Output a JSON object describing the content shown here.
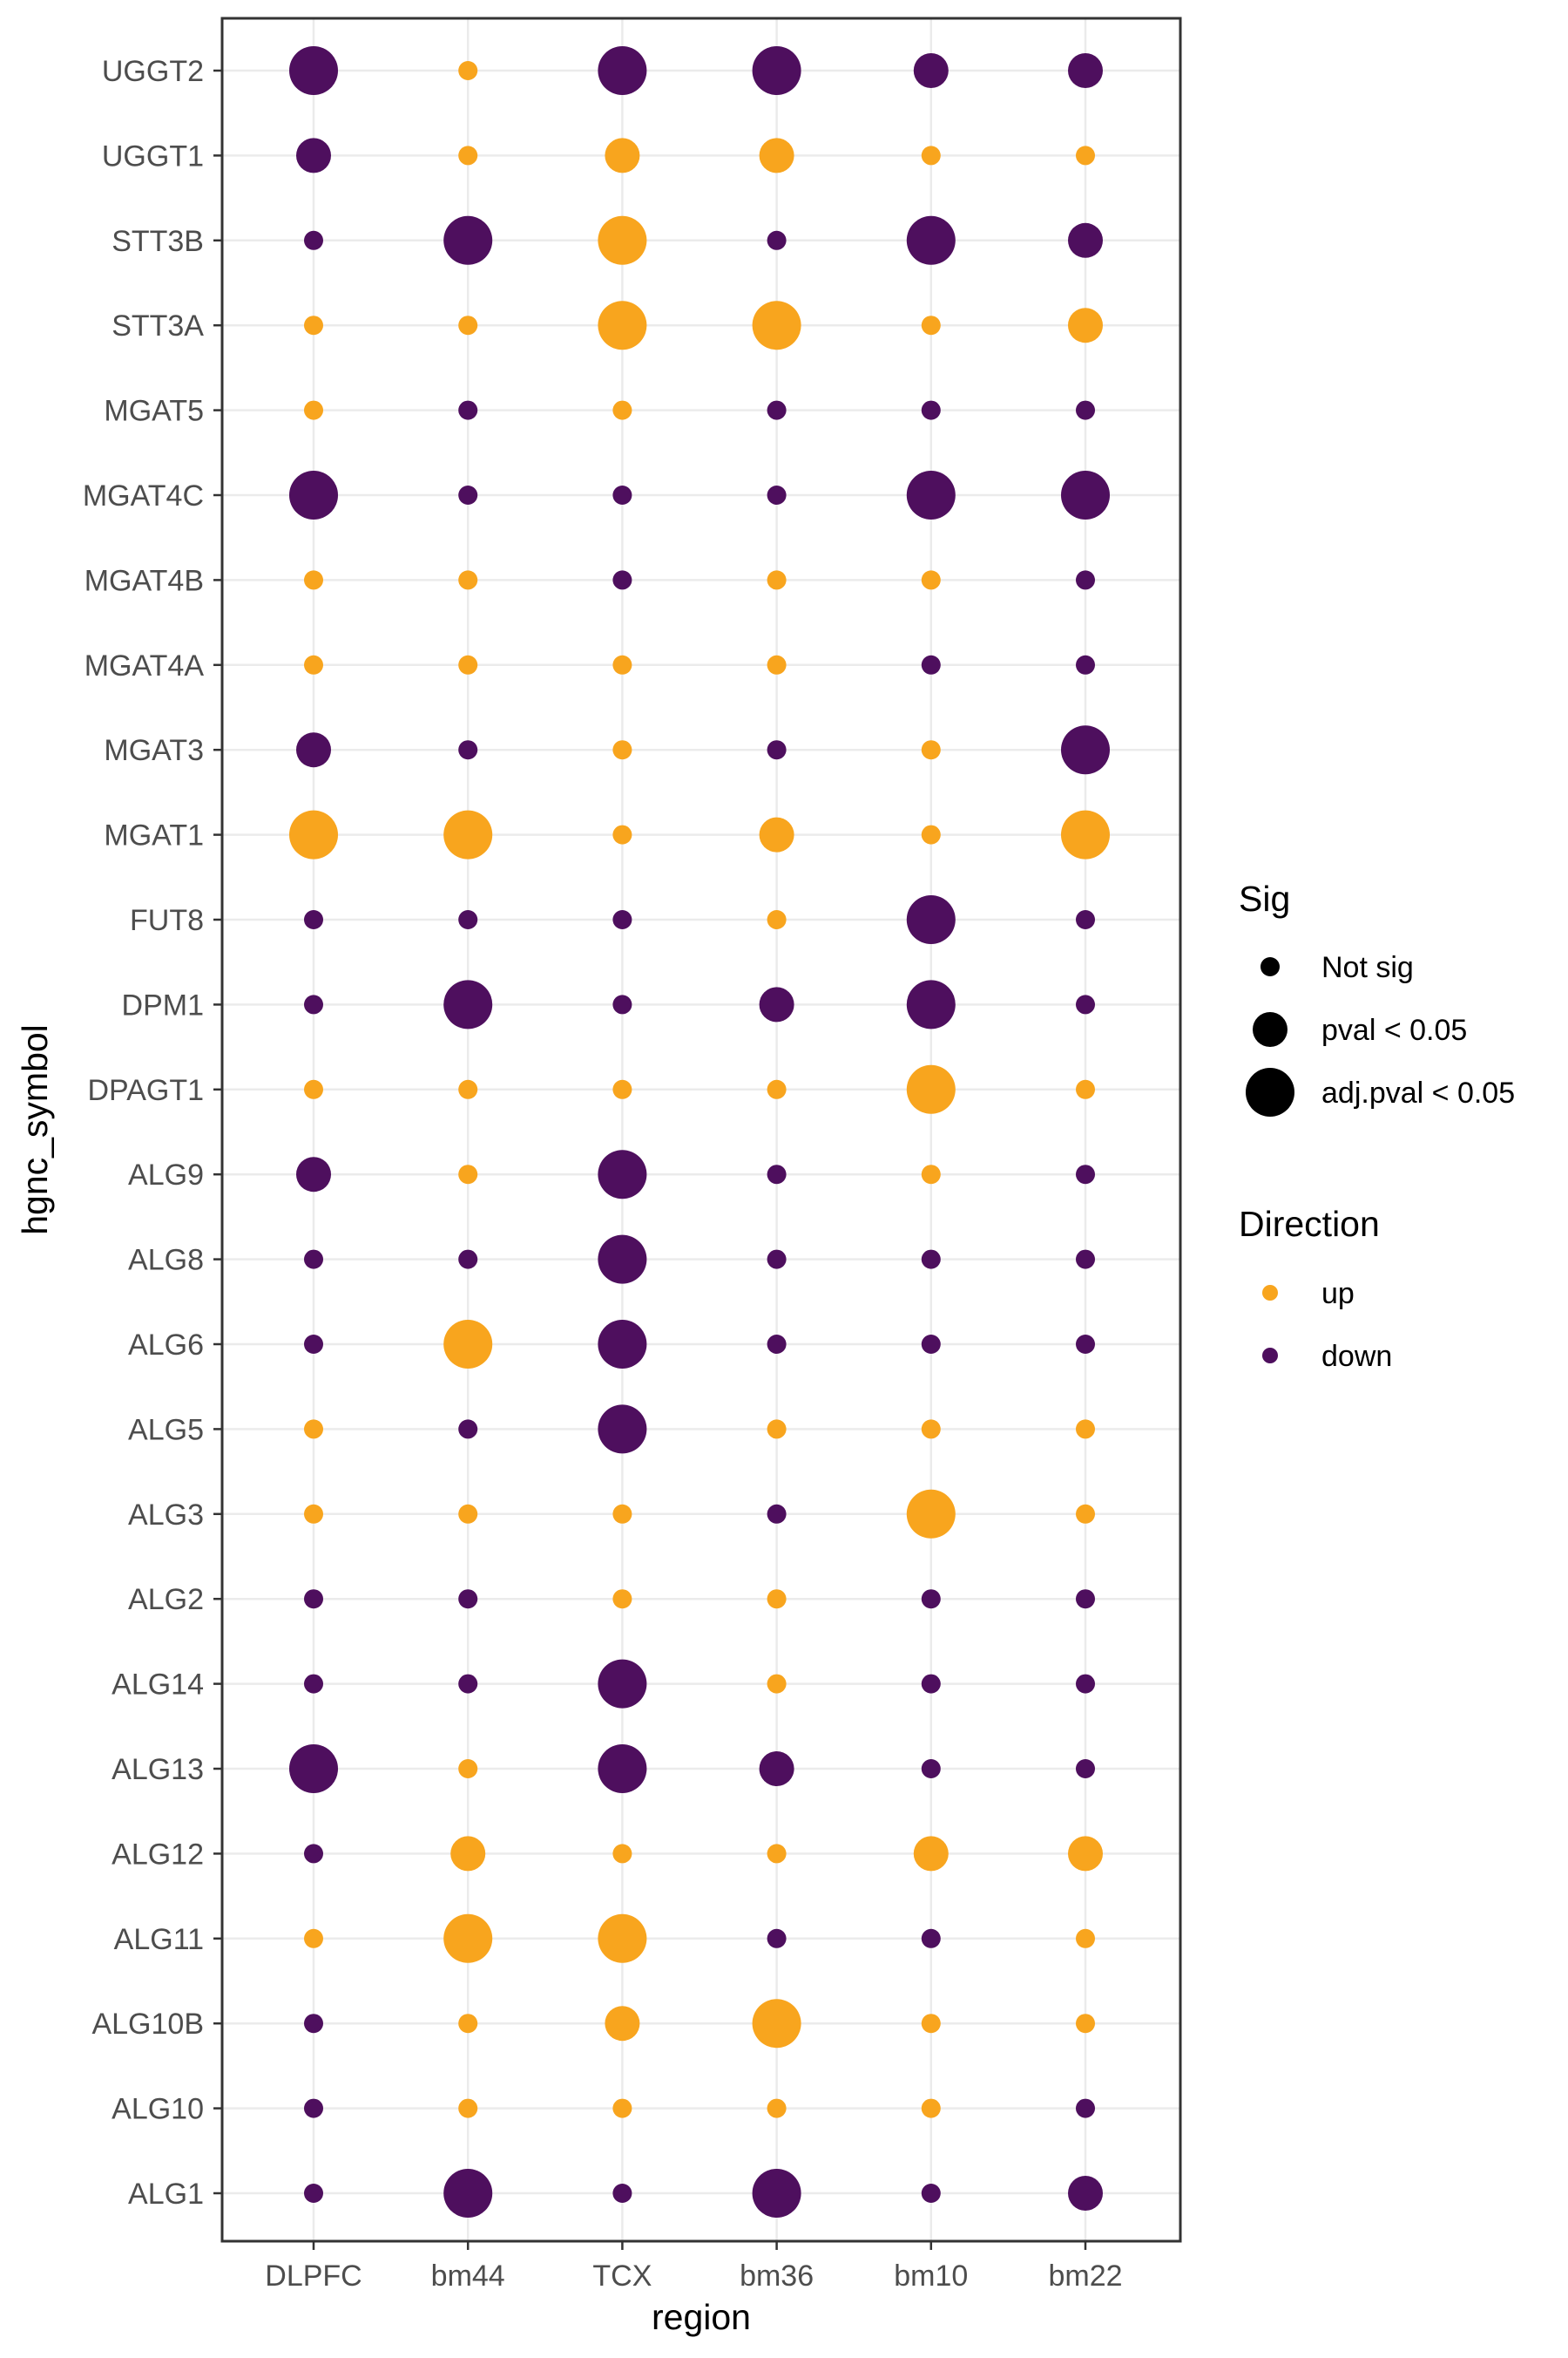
{
  "chart_data": {
    "type": "scatter",
    "xlabel": "region",
    "ylabel": "hgnc_symbol",
    "x_categories": [
      "DLPFC",
      "bm44",
      "TCX",
      "bm36",
      "bm10",
      "bm22"
    ],
    "y_categories": [
      "UGGT2",
      "UGGT1",
      "STT3B",
      "STT3A",
      "MGAT5",
      "MGAT4C",
      "MGAT4B",
      "MGAT4A",
      "MGAT3",
      "MGAT1",
      "FUT8",
      "DPM1",
      "DPAGT1",
      "ALG9",
      "ALG8",
      "ALG6",
      "ALG5",
      "ALG3",
      "ALG2",
      "ALG14",
      "ALG13",
      "ALG12",
      "ALG11",
      "ALG10B",
      "ALG10",
      "ALG1"
    ],
    "grid": true,
    "legend_placement": "right",
    "size_legend": {
      "title": "Sig",
      "levels": [
        "Not sig",
        "pval < 0.05",
        "adj.pval < 0.05"
      ]
    },
    "color_legend": {
      "title": "Direction",
      "levels": [
        "up",
        "down"
      ],
      "colors": {
        "up": "#F8A51E",
        "down": "#4E0F5E"
      }
    },
    "points": [
      [
        "UGGT2",
        "DLPFC",
        "down",
        "adj.pval < 0.05"
      ],
      [
        "UGGT2",
        "bm44",
        "up",
        "Not sig"
      ],
      [
        "UGGT2",
        "TCX",
        "down",
        "adj.pval < 0.05"
      ],
      [
        "UGGT2",
        "bm36",
        "down",
        "adj.pval < 0.05"
      ],
      [
        "UGGT2",
        "bm10",
        "down",
        "pval < 0.05"
      ],
      [
        "UGGT2",
        "bm22",
        "down",
        "pval < 0.05"
      ],
      [
        "UGGT1",
        "DLPFC",
        "down",
        "pval < 0.05"
      ],
      [
        "UGGT1",
        "bm44",
        "up",
        "Not sig"
      ],
      [
        "UGGT1",
        "TCX",
        "up",
        "pval < 0.05"
      ],
      [
        "UGGT1",
        "bm36",
        "up",
        "pval < 0.05"
      ],
      [
        "UGGT1",
        "bm10",
        "up",
        "Not sig"
      ],
      [
        "UGGT1",
        "bm22",
        "up",
        "Not sig"
      ],
      [
        "STT3B",
        "DLPFC",
        "down",
        "Not sig"
      ],
      [
        "STT3B",
        "bm44",
        "down",
        "adj.pval < 0.05"
      ],
      [
        "STT3B",
        "TCX",
        "up",
        "adj.pval < 0.05"
      ],
      [
        "STT3B",
        "bm36",
        "down",
        "Not sig"
      ],
      [
        "STT3B",
        "bm10",
        "down",
        "adj.pval < 0.05"
      ],
      [
        "STT3B",
        "bm22",
        "down",
        "pval < 0.05"
      ],
      [
        "STT3A",
        "DLPFC",
        "up",
        "Not sig"
      ],
      [
        "STT3A",
        "bm44",
        "up",
        "Not sig"
      ],
      [
        "STT3A",
        "TCX",
        "up",
        "adj.pval < 0.05"
      ],
      [
        "STT3A",
        "bm36",
        "up",
        "adj.pval < 0.05"
      ],
      [
        "STT3A",
        "bm10",
        "up",
        "Not sig"
      ],
      [
        "STT3A",
        "bm22",
        "up",
        "pval < 0.05"
      ],
      [
        "MGAT5",
        "DLPFC",
        "up",
        "Not sig"
      ],
      [
        "MGAT5",
        "bm44",
        "down",
        "Not sig"
      ],
      [
        "MGAT5",
        "TCX",
        "up",
        "Not sig"
      ],
      [
        "MGAT5",
        "bm36",
        "down",
        "Not sig"
      ],
      [
        "MGAT5",
        "bm10",
        "down",
        "Not sig"
      ],
      [
        "MGAT5",
        "bm22",
        "down",
        "Not sig"
      ],
      [
        "MGAT4C",
        "DLPFC",
        "down",
        "adj.pval < 0.05"
      ],
      [
        "MGAT4C",
        "bm44",
        "down",
        "Not sig"
      ],
      [
        "MGAT4C",
        "TCX",
        "down",
        "Not sig"
      ],
      [
        "MGAT4C",
        "bm36",
        "down",
        "Not sig"
      ],
      [
        "MGAT4C",
        "bm10",
        "down",
        "adj.pval < 0.05"
      ],
      [
        "MGAT4C",
        "bm22",
        "down",
        "adj.pval < 0.05"
      ],
      [
        "MGAT4B",
        "DLPFC",
        "up",
        "Not sig"
      ],
      [
        "MGAT4B",
        "bm44",
        "up",
        "Not sig"
      ],
      [
        "MGAT4B",
        "TCX",
        "down",
        "Not sig"
      ],
      [
        "MGAT4B",
        "bm36",
        "up",
        "Not sig"
      ],
      [
        "MGAT4B",
        "bm10",
        "up",
        "Not sig"
      ],
      [
        "MGAT4B",
        "bm22",
        "down",
        "Not sig"
      ],
      [
        "MGAT4A",
        "DLPFC",
        "up",
        "Not sig"
      ],
      [
        "MGAT4A",
        "bm44",
        "up",
        "Not sig"
      ],
      [
        "MGAT4A",
        "TCX",
        "up",
        "Not sig"
      ],
      [
        "MGAT4A",
        "bm36",
        "up",
        "Not sig"
      ],
      [
        "MGAT4A",
        "bm10",
        "down",
        "Not sig"
      ],
      [
        "MGAT4A",
        "bm22",
        "down",
        "Not sig"
      ],
      [
        "MGAT3",
        "DLPFC",
        "down",
        "pval < 0.05"
      ],
      [
        "MGAT3",
        "bm44",
        "down",
        "Not sig"
      ],
      [
        "MGAT3",
        "TCX",
        "up",
        "Not sig"
      ],
      [
        "MGAT3",
        "bm36",
        "down",
        "Not sig"
      ],
      [
        "MGAT3",
        "bm10",
        "up",
        "Not sig"
      ],
      [
        "MGAT3",
        "bm22",
        "down",
        "adj.pval < 0.05"
      ],
      [
        "MGAT1",
        "DLPFC",
        "up",
        "adj.pval < 0.05"
      ],
      [
        "MGAT1",
        "bm44",
        "up",
        "adj.pval < 0.05"
      ],
      [
        "MGAT1",
        "TCX",
        "up",
        "Not sig"
      ],
      [
        "MGAT1",
        "bm36",
        "up",
        "pval < 0.05"
      ],
      [
        "MGAT1",
        "bm10",
        "up",
        "Not sig"
      ],
      [
        "MGAT1",
        "bm22",
        "up",
        "adj.pval < 0.05"
      ],
      [
        "FUT8",
        "DLPFC",
        "down",
        "Not sig"
      ],
      [
        "FUT8",
        "bm44",
        "down",
        "Not sig"
      ],
      [
        "FUT8",
        "TCX",
        "down",
        "Not sig"
      ],
      [
        "FUT8",
        "bm36",
        "up",
        "Not sig"
      ],
      [
        "FUT8",
        "bm10",
        "down",
        "adj.pval < 0.05"
      ],
      [
        "FUT8",
        "bm22",
        "down",
        "Not sig"
      ],
      [
        "DPM1",
        "DLPFC",
        "down",
        "Not sig"
      ],
      [
        "DPM1",
        "bm44",
        "down",
        "adj.pval < 0.05"
      ],
      [
        "DPM1",
        "TCX",
        "down",
        "Not sig"
      ],
      [
        "DPM1",
        "bm36",
        "down",
        "pval < 0.05"
      ],
      [
        "DPM1",
        "bm10",
        "down",
        "adj.pval < 0.05"
      ],
      [
        "DPM1",
        "bm22",
        "down",
        "Not sig"
      ],
      [
        "DPAGT1",
        "DLPFC",
        "up",
        "Not sig"
      ],
      [
        "DPAGT1",
        "bm44",
        "up",
        "Not sig"
      ],
      [
        "DPAGT1",
        "TCX",
        "up",
        "Not sig"
      ],
      [
        "DPAGT1",
        "bm36",
        "up",
        "Not sig"
      ],
      [
        "DPAGT1",
        "bm10",
        "up",
        "adj.pval < 0.05"
      ],
      [
        "DPAGT1",
        "bm22",
        "up",
        "Not sig"
      ],
      [
        "ALG9",
        "DLPFC",
        "down",
        "pval < 0.05"
      ],
      [
        "ALG9",
        "bm44",
        "up",
        "Not sig"
      ],
      [
        "ALG9",
        "TCX",
        "down",
        "adj.pval < 0.05"
      ],
      [
        "ALG9",
        "bm36",
        "down",
        "Not sig"
      ],
      [
        "ALG9",
        "bm10",
        "up",
        "Not sig"
      ],
      [
        "ALG9",
        "bm22",
        "down",
        "Not sig"
      ],
      [
        "ALG8",
        "DLPFC",
        "down",
        "Not sig"
      ],
      [
        "ALG8",
        "bm44",
        "down",
        "Not sig"
      ],
      [
        "ALG8",
        "TCX",
        "down",
        "adj.pval < 0.05"
      ],
      [
        "ALG8",
        "bm36",
        "down",
        "Not sig"
      ],
      [
        "ALG8",
        "bm10",
        "down",
        "Not sig"
      ],
      [
        "ALG8",
        "bm22",
        "down",
        "Not sig"
      ],
      [
        "ALG6",
        "DLPFC",
        "down",
        "Not sig"
      ],
      [
        "ALG6",
        "bm44",
        "up",
        "adj.pval < 0.05"
      ],
      [
        "ALG6",
        "TCX",
        "down",
        "adj.pval < 0.05"
      ],
      [
        "ALG6",
        "bm36",
        "down",
        "Not sig"
      ],
      [
        "ALG6",
        "bm10",
        "down",
        "Not sig"
      ],
      [
        "ALG6",
        "bm22",
        "down",
        "Not sig"
      ],
      [
        "ALG5",
        "DLPFC",
        "up",
        "Not sig"
      ],
      [
        "ALG5",
        "bm44",
        "down",
        "Not sig"
      ],
      [
        "ALG5",
        "TCX",
        "down",
        "adj.pval < 0.05"
      ],
      [
        "ALG5",
        "bm36",
        "up",
        "Not sig"
      ],
      [
        "ALG5",
        "bm10",
        "up",
        "Not sig"
      ],
      [
        "ALG5",
        "bm22",
        "up",
        "Not sig"
      ],
      [
        "ALG3",
        "DLPFC",
        "up",
        "Not sig"
      ],
      [
        "ALG3",
        "bm44",
        "up",
        "Not sig"
      ],
      [
        "ALG3",
        "TCX",
        "up",
        "Not sig"
      ],
      [
        "ALG3",
        "bm36",
        "down",
        "Not sig"
      ],
      [
        "ALG3",
        "bm10",
        "up",
        "adj.pval < 0.05"
      ],
      [
        "ALG3",
        "bm22",
        "up",
        "Not sig"
      ],
      [
        "ALG2",
        "DLPFC",
        "down",
        "Not sig"
      ],
      [
        "ALG2",
        "bm44",
        "down",
        "Not sig"
      ],
      [
        "ALG2",
        "TCX",
        "up",
        "Not sig"
      ],
      [
        "ALG2",
        "bm36",
        "up",
        "Not sig"
      ],
      [
        "ALG2",
        "bm10",
        "down",
        "Not sig"
      ],
      [
        "ALG2",
        "bm22",
        "down",
        "Not sig"
      ],
      [
        "ALG14",
        "DLPFC",
        "down",
        "Not sig"
      ],
      [
        "ALG14",
        "bm44",
        "down",
        "Not sig"
      ],
      [
        "ALG14",
        "TCX",
        "down",
        "adj.pval < 0.05"
      ],
      [
        "ALG14",
        "bm36",
        "up",
        "Not sig"
      ],
      [
        "ALG14",
        "bm10",
        "down",
        "Not sig"
      ],
      [
        "ALG14",
        "bm22",
        "down",
        "Not sig"
      ],
      [
        "ALG13",
        "DLPFC",
        "down",
        "adj.pval < 0.05"
      ],
      [
        "ALG13",
        "bm44",
        "up",
        "Not sig"
      ],
      [
        "ALG13",
        "TCX",
        "down",
        "adj.pval < 0.05"
      ],
      [
        "ALG13",
        "bm36",
        "down",
        "pval < 0.05"
      ],
      [
        "ALG13",
        "bm10",
        "down",
        "Not sig"
      ],
      [
        "ALG13",
        "bm22",
        "down",
        "Not sig"
      ],
      [
        "ALG12",
        "DLPFC",
        "down",
        "Not sig"
      ],
      [
        "ALG12",
        "bm44",
        "up",
        "pval < 0.05"
      ],
      [
        "ALG12",
        "TCX",
        "up",
        "Not sig"
      ],
      [
        "ALG12",
        "bm36",
        "up",
        "Not sig"
      ],
      [
        "ALG12",
        "bm10",
        "up",
        "pval < 0.05"
      ],
      [
        "ALG12",
        "bm22",
        "up",
        "pval < 0.05"
      ],
      [
        "ALG11",
        "DLPFC",
        "up",
        "Not sig"
      ],
      [
        "ALG11",
        "bm44",
        "up",
        "adj.pval < 0.05"
      ],
      [
        "ALG11",
        "TCX",
        "up",
        "adj.pval < 0.05"
      ],
      [
        "ALG11",
        "bm36",
        "down",
        "Not sig"
      ],
      [
        "ALG11",
        "bm10",
        "down",
        "Not sig"
      ],
      [
        "ALG11",
        "bm22",
        "up",
        "Not sig"
      ],
      [
        "ALG10B",
        "DLPFC",
        "down",
        "Not sig"
      ],
      [
        "ALG10B",
        "bm44",
        "up",
        "Not sig"
      ],
      [
        "ALG10B",
        "TCX",
        "up",
        "pval < 0.05"
      ],
      [
        "ALG10B",
        "bm36",
        "up",
        "adj.pval < 0.05"
      ],
      [
        "ALG10B",
        "bm10",
        "up",
        "Not sig"
      ],
      [
        "ALG10B",
        "bm22",
        "up",
        "Not sig"
      ],
      [
        "ALG10",
        "DLPFC",
        "down",
        "Not sig"
      ],
      [
        "ALG10",
        "bm44",
        "up",
        "Not sig"
      ],
      [
        "ALG10",
        "TCX",
        "up",
        "Not sig"
      ],
      [
        "ALG10",
        "bm36",
        "up",
        "Not sig"
      ],
      [
        "ALG10",
        "bm10",
        "up",
        "Not sig"
      ],
      [
        "ALG10",
        "bm22",
        "down",
        "Not sig"
      ],
      [
        "ALG1",
        "DLPFC",
        "down",
        "Not sig"
      ],
      [
        "ALG1",
        "bm44",
        "down",
        "adj.pval < 0.05"
      ],
      [
        "ALG1",
        "TCX",
        "down",
        "Not sig"
      ],
      [
        "ALG1",
        "bm36",
        "down",
        "adj.pval < 0.05"
      ],
      [
        "ALG1",
        "bm10",
        "down",
        "Not sig"
      ],
      [
        "ALG1",
        "bm22",
        "down",
        "pval < 0.05"
      ]
    ]
  }
}
